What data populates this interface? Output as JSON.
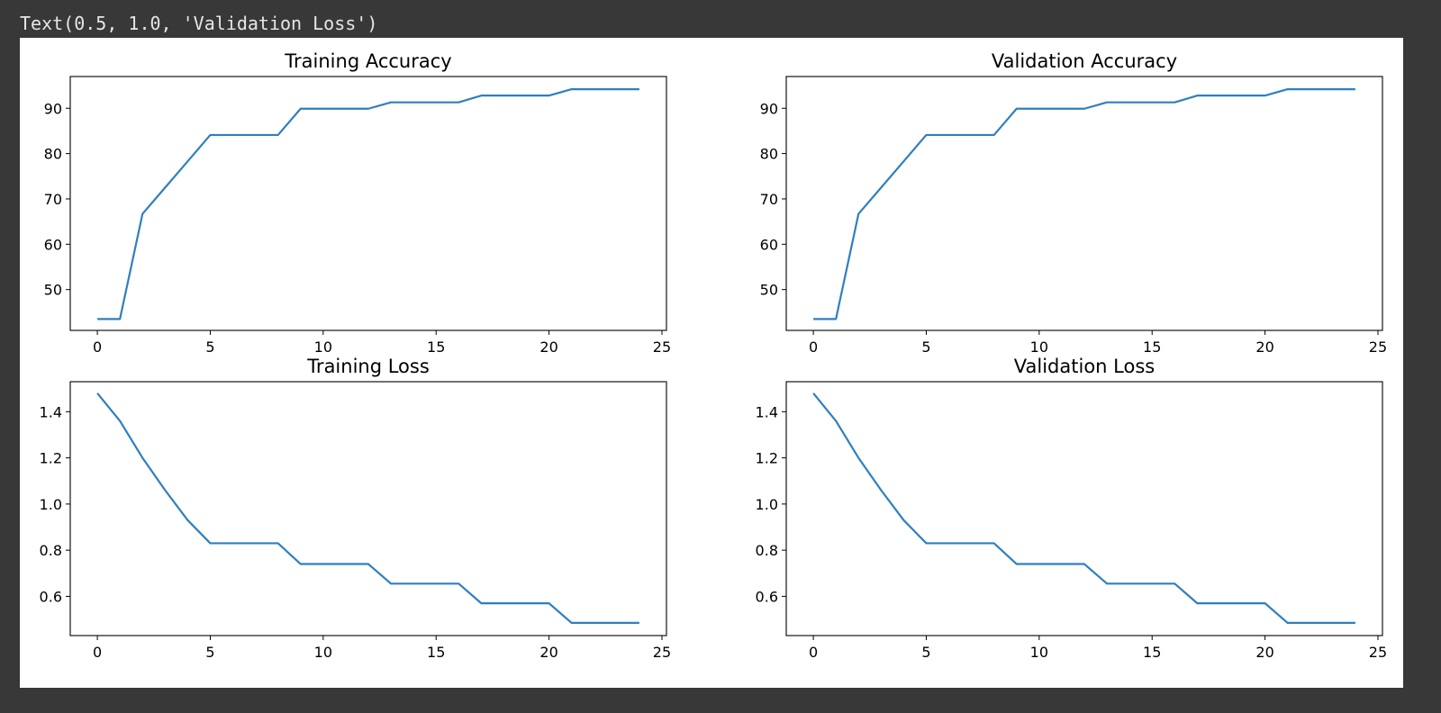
{
  "output": {
    "text": "Text(0.5, 1.0, 'Validation Loss')"
  },
  "colors": {
    "page_bg": "#383838",
    "figure_bg": "#ffffff",
    "line": "#2f7fbf",
    "axis": "#000000"
  },
  "chart_data": [
    {
      "type": "line",
      "title": "Training Accuracy",
      "xlabel": "",
      "ylabel": "",
      "xlim": [
        -1.2,
        25.2
      ],
      "ylim": [
        41,
        97
      ],
      "xticks": [
        0,
        5,
        10,
        15,
        20,
        25
      ],
      "yticks": [
        50,
        60,
        70,
        80,
        90
      ],
      "grid": false,
      "series": [
        {
          "x": [
            0,
            1,
            2,
            3,
            4,
            5,
            6,
            7,
            8,
            9,
            10,
            11,
            12,
            13,
            14,
            15,
            16,
            17,
            18,
            19,
            20,
            21,
            22,
            23,
            24
          ],
          "values": [
            43.5,
            43.5,
            66.7,
            72.5,
            78.3,
            84.1,
            84.1,
            84.1,
            84.1,
            89.9,
            89.9,
            89.9,
            89.9,
            91.3,
            91.3,
            91.3,
            91.3,
            92.8,
            92.8,
            92.8,
            92.8,
            94.2,
            94.2,
            94.2,
            94.2
          ]
        }
      ]
    },
    {
      "type": "line",
      "title": "Validation Accuracy",
      "xlabel": "",
      "ylabel": "",
      "xlim": [
        -1.2,
        25.2
      ],
      "ylim": [
        41,
        97
      ],
      "xticks": [
        0,
        5,
        10,
        15,
        20,
        25
      ],
      "yticks": [
        50,
        60,
        70,
        80,
        90
      ],
      "grid": false,
      "series": [
        {
          "x": [
            0,
            1,
            2,
            3,
            4,
            5,
            6,
            7,
            8,
            9,
            10,
            11,
            12,
            13,
            14,
            15,
            16,
            17,
            18,
            19,
            20,
            21,
            22,
            23,
            24
          ],
          "values": [
            43.5,
            43.5,
            66.7,
            72.5,
            78.3,
            84.1,
            84.1,
            84.1,
            84.1,
            89.9,
            89.9,
            89.9,
            89.9,
            91.3,
            91.3,
            91.3,
            91.3,
            92.8,
            92.8,
            92.8,
            92.8,
            94.2,
            94.2,
            94.2,
            94.2
          ]
        }
      ]
    },
    {
      "type": "line",
      "title": "Training Loss",
      "xlabel": "",
      "ylabel": "",
      "xlim": [
        -1.2,
        25.2
      ],
      "ylim": [
        0.43,
        1.53
      ],
      "xticks": [
        0,
        5,
        10,
        15,
        20,
        25
      ],
      "yticks": [
        0.6,
        0.8,
        1.0,
        1.2,
        1.4
      ],
      "ytick_labels": [
        "0.6",
        "0.8",
        "1.0",
        "1.2",
        "1.4"
      ],
      "grid": false,
      "series": [
        {
          "x": [
            0,
            1,
            2,
            3,
            4,
            5,
            6,
            7,
            8,
            9,
            10,
            11,
            12,
            13,
            14,
            15,
            16,
            17,
            18,
            19,
            20,
            21,
            22,
            23,
            24
          ],
          "values": [
            1.48,
            1.36,
            1.2,
            1.06,
            0.93,
            0.83,
            0.83,
            0.83,
            0.83,
            0.74,
            0.74,
            0.74,
            0.74,
            0.655,
            0.655,
            0.655,
            0.655,
            0.57,
            0.57,
            0.57,
            0.57,
            0.485,
            0.485,
            0.485,
            0.485
          ]
        }
      ]
    },
    {
      "type": "line",
      "title": "Validation Loss",
      "xlabel": "",
      "ylabel": "",
      "xlim": [
        -1.2,
        25.2
      ],
      "ylim": [
        0.43,
        1.53
      ],
      "xticks": [
        0,
        5,
        10,
        15,
        20,
        25
      ],
      "yticks": [
        0.6,
        0.8,
        1.0,
        1.2,
        1.4
      ],
      "ytick_labels": [
        "0.6",
        "0.8",
        "1.0",
        "1.2",
        "1.4"
      ],
      "grid": false,
      "series": [
        {
          "x": [
            0,
            1,
            2,
            3,
            4,
            5,
            6,
            7,
            8,
            9,
            10,
            11,
            12,
            13,
            14,
            15,
            16,
            17,
            18,
            19,
            20,
            21,
            22,
            23,
            24
          ],
          "values": [
            1.48,
            1.36,
            1.2,
            1.06,
            0.93,
            0.83,
            0.83,
            0.83,
            0.83,
            0.74,
            0.74,
            0.74,
            0.74,
            0.655,
            0.655,
            0.655,
            0.655,
            0.57,
            0.57,
            0.57,
            0.57,
            0.485,
            0.485,
            0.485,
            0.485
          ]
        }
      ]
    }
  ]
}
